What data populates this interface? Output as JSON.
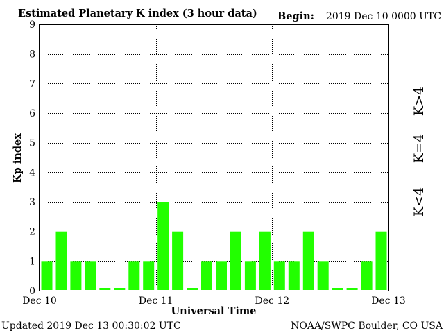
{
  "header": {
    "title": "Estimated Planetary K index (3 hour data)",
    "begin_label": "Begin:",
    "begin_value": "2019 Dec 10 0000 UTC"
  },
  "footer": {
    "updated": "Updated 2019 Dec 13 00:30:02 UTC",
    "source": "NOAA/SWPC Boulder, CO USA"
  },
  "legend": [
    {
      "label": "K>4",
      "color": "#ff2a00"
    },
    {
      "label": "K=4",
      "color": "#ffd700"
    },
    {
      "label": "K<4",
      "color": "#22ff00"
    }
  ],
  "chart_data": {
    "type": "bar",
    "title": "Estimated Planetary K index (3 hour data)",
    "xlabel": "Universal Time",
    "ylabel": "Kp index",
    "ylim": [
      0,
      9
    ],
    "yticks": [
      0,
      1,
      2,
      3,
      4,
      5,
      6,
      7,
      8,
      9
    ],
    "xticks": [
      "Dec 10",
      "Dec 11",
      "Dec 12",
      "Dec 13"
    ],
    "grid": true,
    "bar_color": "#22ff00",
    "values": [
      1,
      2,
      1,
      1,
      0,
      0,
      1,
      1,
      3,
      2,
      0,
      1,
      1,
      2,
      1,
      2,
      1,
      1,
      2,
      1,
      0,
      0,
      1,
      2
    ]
  }
}
